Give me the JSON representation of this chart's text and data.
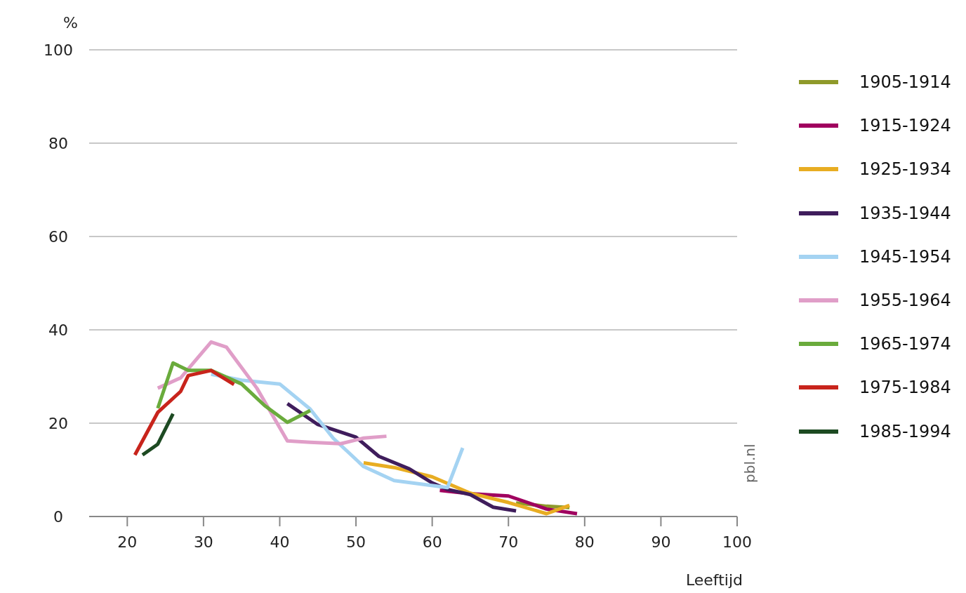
{
  "chart_data": {
    "type": "line",
    "xlabel": "Leeftijd",
    "ylabel": "%",
    "xlim": [
      15,
      100
    ],
    "xticks": [
      20,
      30,
      40,
      50,
      60,
      70,
      80,
      90,
      100
    ],
    "ylim": [
      0,
      100
    ],
    "yticks": [
      0,
      20,
      40,
      60,
      80,
      100
    ],
    "grid": "y",
    "legend": "right",
    "line_style": "solid",
    "marker": "none",
    "annotations": [
      "pbl.nl"
    ],
    "series": [
      {
        "name": "1905-1914",
        "color": "#8f9a2a",
        "x": [
          71,
          75,
          78
        ],
        "values": [
          2.9,
          2.2,
          1.9
        ]
      },
      {
        "name": "1915-1924",
        "color": "#a0005f",
        "x": [
          61,
          65,
          70,
          75,
          79
        ],
        "values": [
          5.6,
          4.9,
          4.4,
          1.6,
          0.6
        ]
      },
      {
        "name": "1925-1934",
        "color": "#e8ad22",
        "x": [
          51,
          55,
          60,
          65,
          70,
          75,
          78
        ],
        "values": [
          11.5,
          10.5,
          8.5,
          5,
          3,
          0.6,
          2.4
        ]
      },
      {
        "name": "1935-1944",
        "color": "#3f1d5c",
        "x": [
          41,
          45,
          50,
          53,
          57,
          60,
          62,
          65,
          68,
          71
        ],
        "values": [
          24.2,
          19.7,
          17,
          12.9,
          10.2,
          7.2,
          5.8,
          4.7,
          2,
          1.2
        ]
      },
      {
        "name": "1945-1954",
        "color": "#a4d3f2",
        "x": [
          31,
          35,
          40,
          44,
          47,
          51,
          55,
          62,
          64
        ],
        "values": [
          30.5,
          29.2,
          28.4,
          23,
          16.8,
          10.7,
          7.7,
          6.2,
          14.7
        ]
      },
      {
        "name": "1955-1964",
        "color": "#e09ec8",
        "x": [
          24,
          27,
          31,
          33,
          37,
          41,
          44,
          48,
          51,
          54
        ],
        "values": [
          27.5,
          29.7,
          37.4,
          36.3,
          27.5,
          16.2,
          15.9,
          15.6,
          16.8,
          17.2
        ]
      },
      {
        "name": "1965-1974",
        "color": "#6aab3c",
        "x": [
          24,
          26,
          28,
          31,
          35,
          38,
          41,
          44
        ],
        "values": [
          23.2,
          32.9,
          31.3,
          31.3,
          28.4,
          23.8,
          20.2,
          22.7
        ]
      },
      {
        "name": "1975-1984",
        "color": "#c8241c",
        "x": [
          21,
          24,
          27,
          28,
          31,
          34
        ],
        "values": [
          13.2,
          22.3,
          26.8,
          30.2,
          31.3,
          28.3
        ]
      },
      {
        "name": "1985-1994",
        "color": "#1d4a22",
        "x": [
          22,
          24,
          26
        ],
        "values": [
          13.2,
          15.5,
          22
        ]
      }
    ]
  }
}
